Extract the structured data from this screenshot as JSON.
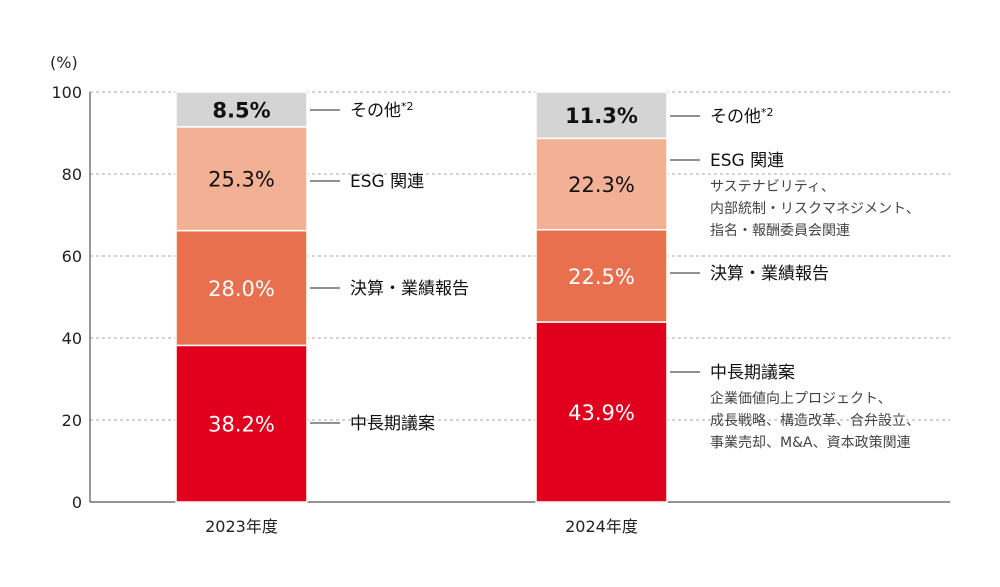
{
  "chart_data": {
    "type": "stacked-bar",
    "yunit": "(%)",
    "ylim": [
      0,
      100
    ],
    "yticks": [
      0,
      20,
      40,
      60,
      80,
      100
    ],
    "grid": true,
    "categories": [
      "2023年度",
      "2024年度"
    ],
    "series": [
      {
        "name": "中長期議案",
        "color": "#e0001e",
        "values": [
          38.2,
          43.9
        ],
        "labels": [
          "38.2%",
          "43.9%"
        ],
        "description": [
          "企業価値向上プロジェクト、",
          "成長戦略、構造改革、合弁設立、",
          "事業売却、M&A、資本政策関連"
        ]
      },
      {
        "name": "決算・業績報告",
        "color": "#e8704f",
        "values": [
          28.0,
          22.5
        ],
        "labels": [
          "28.0%",
          "22.5%"
        ],
        "description": []
      },
      {
        "name": "ESG 関連",
        "color": "#f2b094",
        "values": [
          25.3,
          22.3
        ],
        "labels": [
          "25.3%",
          "22.3%"
        ],
        "description": [
          "サステナビリティ、",
          "内部統制・リスクマネジメント、",
          "指名・報酬委員会関連"
        ]
      },
      {
        "name": "その他*2",
        "color": "#d4d4d4",
        "values": [
          8.5,
          11.3
        ],
        "labels": [
          "8.5%",
          "11.3%"
        ],
        "description": []
      }
    ]
  }
}
